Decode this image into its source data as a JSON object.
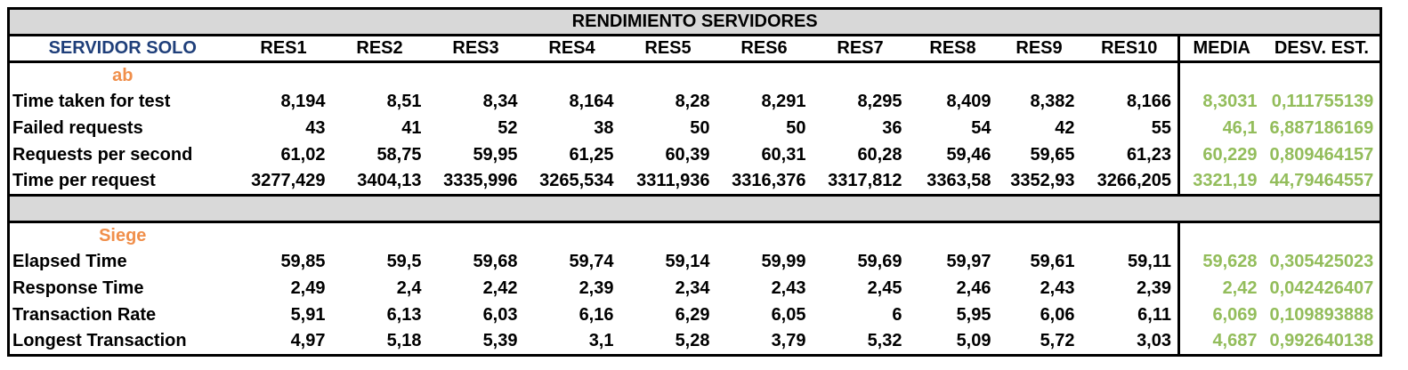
{
  "table": {
    "title": "RENDIMIENTO SERVIDORES",
    "headers": [
      "SERVIDOR SOLO",
      "RES1",
      "RES2",
      "RES3",
      "RES4",
      "RES5",
      "RES6",
      "RES7",
      "RES8",
      "RES9",
      "RES10",
      "MEDIA",
      "DESV. EST."
    ],
    "sections": [
      {
        "name": "ab",
        "rows": [
          {
            "label": "Time taken for test",
            "values": [
              "8,194",
              "8,51",
              "8,34",
              "8,164",
              "8,28",
              "8,291",
              "8,295",
              "8,409",
              "8,382",
              "8,166"
            ],
            "media": "8,3031",
            "desv": "0,111755139"
          },
          {
            "label": "Failed requests",
            "values": [
              "43",
              "41",
              "52",
              "38",
              "50",
              "50",
              "36",
              "54",
              "42",
              "55"
            ],
            "media": "46,1",
            "desv": "6,887186169"
          },
          {
            "label": "Requests per second",
            "values": [
              "61,02",
              "58,75",
              "59,95",
              "61,25",
              "60,39",
              "60,31",
              "60,28",
              "59,46",
              "59,65",
              "61,23"
            ],
            "media": "60,229",
            "desv": "0,809464157"
          },
          {
            "label": "Time per request",
            "values": [
              "3277,429",
              "3404,13",
              "3335,996",
              "3265,534",
              "3311,936",
              "3316,376",
              "3317,812",
              "3363,58",
              "3352,93",
              "3266,205"
            ],
            "media": "3321,19",
            "desv": "44,79464557"
          }
        ]
      },
      {
        "name": "Siege",
        "rows": [
          {
            "label": "Elapsed Time",
            "values": [
              "59,85",
              "59,5",
              "59,68",
              "59,74",
              "59,14",
              "59,99",
              "59,69",
              "59,97",
              "59,61",
              "59,11"
            ],
            "media": "59,628",
            "desv": "0,305425023"
          },
          {
            "label": "Response Time",
            "values": [
              "2,49",
              "2,4",
              "2,42",
              "2,39",
              "2,34",
              "2,43",
              "2,45",
              "2,46",
              "2,43",
              "2,39"
            ],
            "media": "2,42",
            "desv": "0,042426407"
          },
          {
            "label": "Transaction Rate",
            "values": [
              "5,91",
              "6,13",
              "6,03",
              "6,16",
              "6,29",
              "6,05",
              "6",
              "5,95",
              "6,06",
              "6,11"
            ],
            "media": "6,069",
            "desv": "0,109893888"
          },
          {
            "label": "Longest Transaction",
            "values": [
              "4,97",
              "5,18",
              "5,39",
              "3,1",
              "5,28",
              "3,79",
              "5,32",
              "5,09",
              "5,72",
              "3,03"
            ],
            "media": "4,687",
            "desv": "0,992640138"
          }
        ]
      }
    ],
    "colors": {
      "header_blue": "#1f3f7a",
      "section_orange": "#f08f4b",
      "stats_green": "#93bd5b",
      "band_gray": "#d9d9d9"
    }
  }
}
